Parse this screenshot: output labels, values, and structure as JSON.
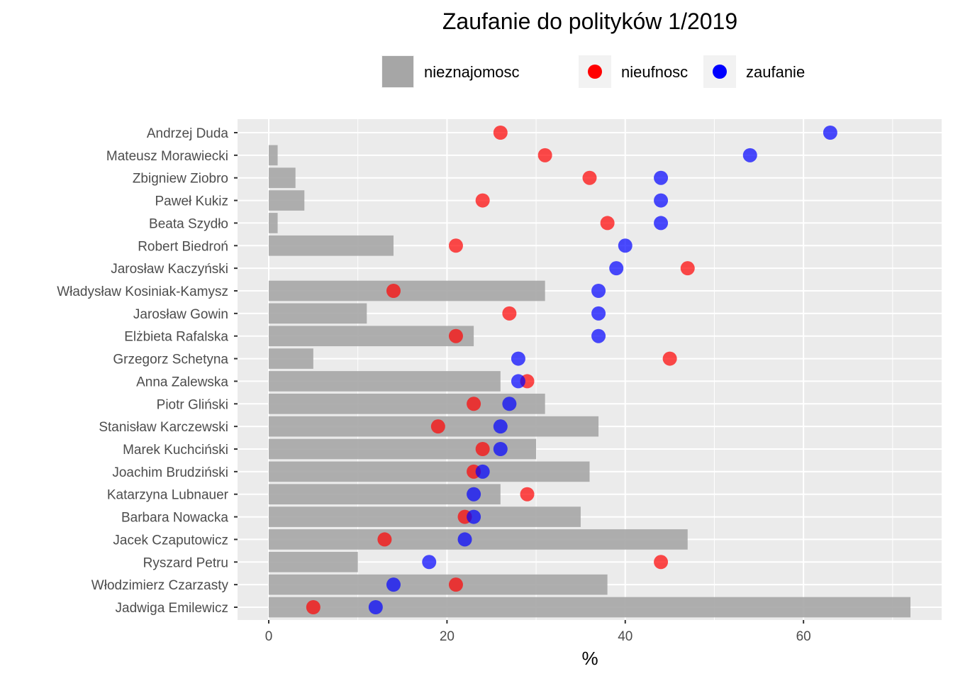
{
  "chart_data": {
    "type": "bar",
    "title": "Zaufanie do polityków 1/2019",
    "xlabel": "%",
    "ylabel": "",
    "xlim": [
      -3.5,
      75.5
    ],
    "xticks": [
      0,
      20,
      40,
      60
    ],
    "grid": true,
    "legend_position": "top",
    "legend": [
      {
        "label": "nieznajomosc",
        "kind": "bar",
        "color": "#a6a6a6"
      },
      {
        "label": "nieufnosc",
        "kind": "point",
        "color": "#ff0000"
      },
      {
        "label": "zaufanie",
        "kind": "point",
        "color": "#0000ff"
      }
    ],
    "categories": [
      "Andrzej Duda",
      "Mateusz Morawiecki",
      "Zbigniew Ziobro",
      "Paweł Kukiz",
      "Beata Szydło",
      "Robert Biedroń",
      "Jarosław Kaczyński",
      "Władysław Kosiniak-Kamysz",
      "Jarosław Gowin",
      "Elżbieta Rafalska",
      "Grzegorz Schetyna",
      "Anna Zalewska",
      "Piotr Gliński",
      "Stanisław Karczewski",
      "Marek Kuchciński",
      "Joachim Brudziński",
      "Katarzyna Lubnauer",
      "Barbara Nowacka",
      "Jacek Czaputowicz",
      "Ryszard Petru",
      "Włodzimierz Czarzasty",
      "Jadwiga Emilewicz"
    ],
    "series": [
      {
        "name": "nieznajomosc",
        "kind": "bar",
        "color": "#a6a6a6",
        "values": [
          0,
          1,
          3,
          4,
          1,
          14,
          0,
          31,
          11,
          23,
          5,
          26,
          31,
          37,
          30,
          36,
          26,
          35,
          47,
          10,
          38,
          72
        ]
      },
      {
        "name": "nieufnosc",
        "kind": "point",
        "color": "#ff0000",
        "values": [
          26,
          31,
          36,
          24,
          38,
          21,
          47,
          14,
          27,
          21,
          45,
          29,
          23,
          19,
          24,
          23,
          29,
          22,
          13,
          44,
          21,
          5
        ]
      },
      {
        "name": "zaufanie",
        "kind": "point",
        "color": "#0000ff",
        "values": [
          63,
          54,
          44,
          44,
          44,
          40,
          39,
          37,
          37,
          37,
          28,
          28,
          27,
          26,
          26,
          24,
          23,
          23,
          22,
          18,
          14,
          12
        ]
      }
    ]
  }
}
